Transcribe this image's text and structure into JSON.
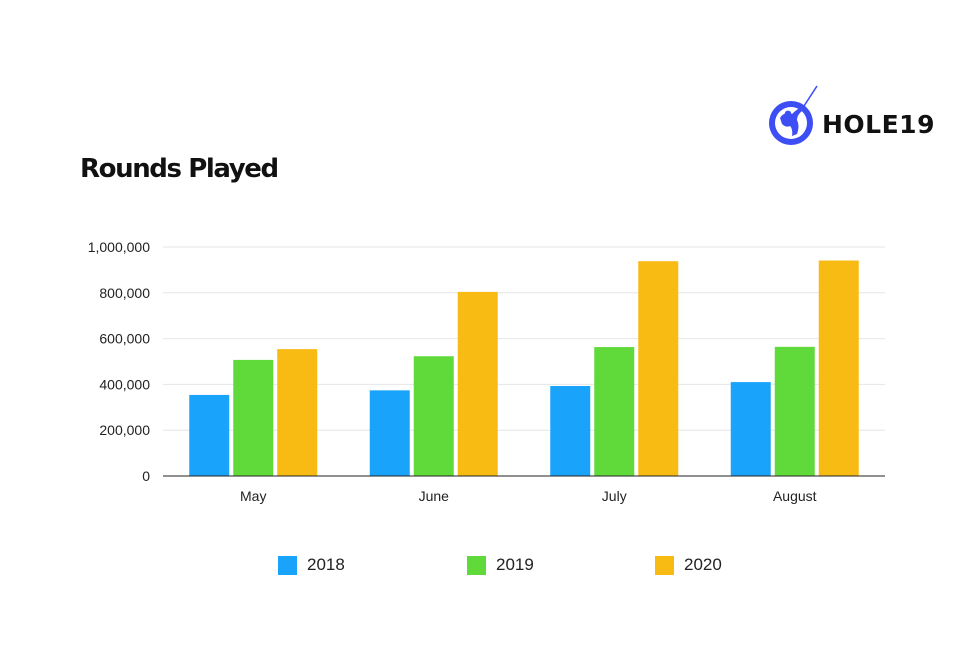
{
  "brand": {
    "name": "HOLE19",
    "logo_icon": "golfer-icon",
    "logo_color": "#3d4ef5"
  },
  "chart_data": {
    "type": "bar",
    "title": "Rounds Played",
    "xlabel": "",
    "ylabel": "",
    "categories": [
      "May",
      "June",
      "July",
      "August"
    ],
    "series": [
      {
        "name": "2018",
        "color": "#1aa3fb",
        "values": [
          354000,
          374000,
          393000,
          410000
        ]
      },
      {
        "name": "2019",
        "color": "#60d93a",
        "values": [
          507000,
          523000,
          563000,
          564000
        ]
      },
      {
        "name": "2020",
        "color": "#f8bb14",
        "values": [
          554000,
          804000,
          938000,
          941000
        ]
      }
    ],
    "ylim": [
      0,
      1000000
    ],
    "yticks": [
      0,
      200000,
      400000,
      600000,
      800000,
      1000000
    ],
    "ytick_labels": [
      "0",
      "200,000",
      "400,000",
      "600,000",
      "800,000",
      "1,000,000"
    ],
    "grid": true,
    "legend_position": "bottom"
  }
}
